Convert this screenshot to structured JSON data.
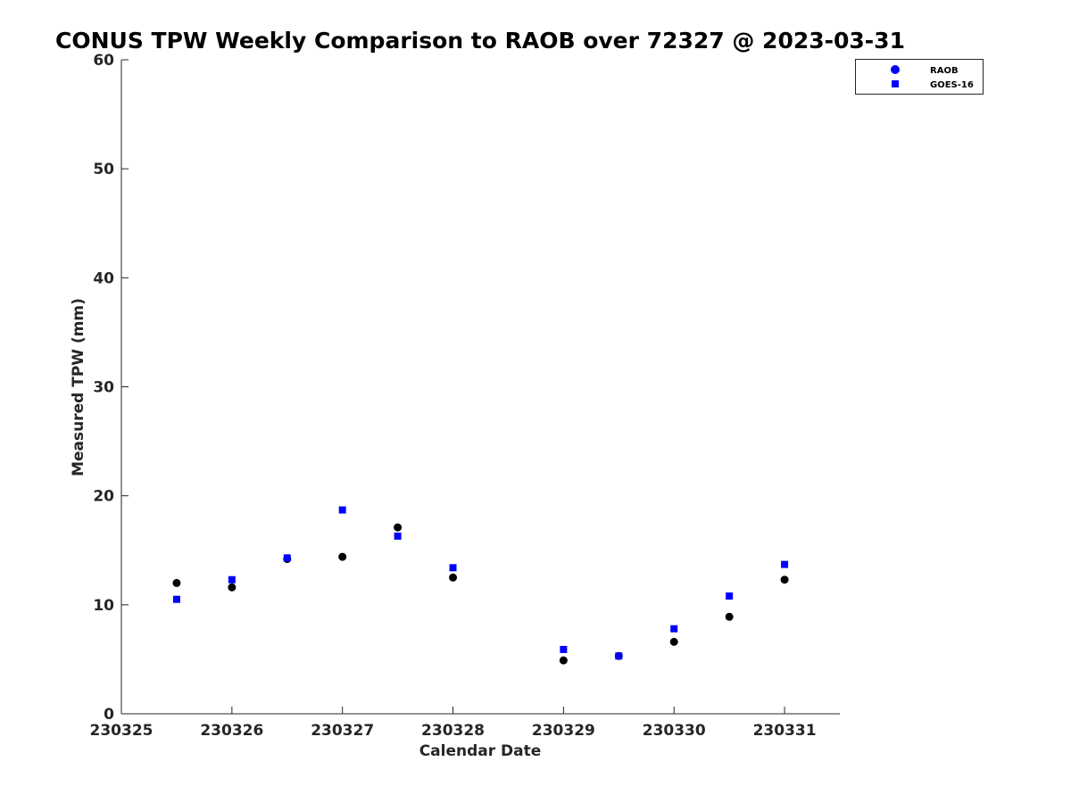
{
  "chart_data": {
    "type": "scatter",
    "title": "CONUS TPW Weekly Comparison to RAOB over 72327 @ 2023-03-31",
    "xlabel": "Calendar Date",
    "ylabel": "Measured TPW (mm)",
    "xlim": [
      230325,
      230331.5
    ],
    "ylim": [
      0,
      60
    ],
    "x_ticks": [
      230325,
      230326,
      230327,
      230328,
      230329,
      230330,
      230331
    ],
    "x_tick_labels": [
      "230325",
      "230326",
      "230327",
      "230328",
      "230329",
      "230330",
      "230331"
    ],
    "y_ticks": [
      0,
      10,
      20,
      30,
      40,
      50,
      60
    ],
    "y_tick_labels": [
      "0",
      "10",
      "20",
      "30",
      "40",
      "50",
      "60"
    ],
    "grid": false,
    "legend_position": "outside-top-right",
    "series": [
      {
        "name": "RAOB",
        "marker": "circle",
        "color": "#000000",
        "legend_color": "#0000ff",
        "x": [
          230325.5,
          230326,
          230326.5,
          230327,
          230327.5,
          230328,
          230329,
          230329.5,
          230330,
          230330.5,
          230331
        ],
        "y": [
          12.0,
          11.6,
          14.2,
          14.4,
          17.1,
          12.5,
          4.9,
          5.3,
          6.6,
          8.9,
          12.3
        ]
      },
      {
        "name": "GOES-16",
        "marker": "square",
        "color": "#0000ff",
        "x": [
          230325.5,
          230326,
          230326.5,
          230327,
          230327.5,
          230328,
          230329,
          230329.5,
          230330,
          230330.5,
          230331
        ],
        "y": [
          10.5,
          12.3,
          14.3,
          18.7,
          16.3,
          13.4,
          5.9,
          5.3,
          7.8,
          10.8,
          13.7
        ]
      }
    ]
  }
}
